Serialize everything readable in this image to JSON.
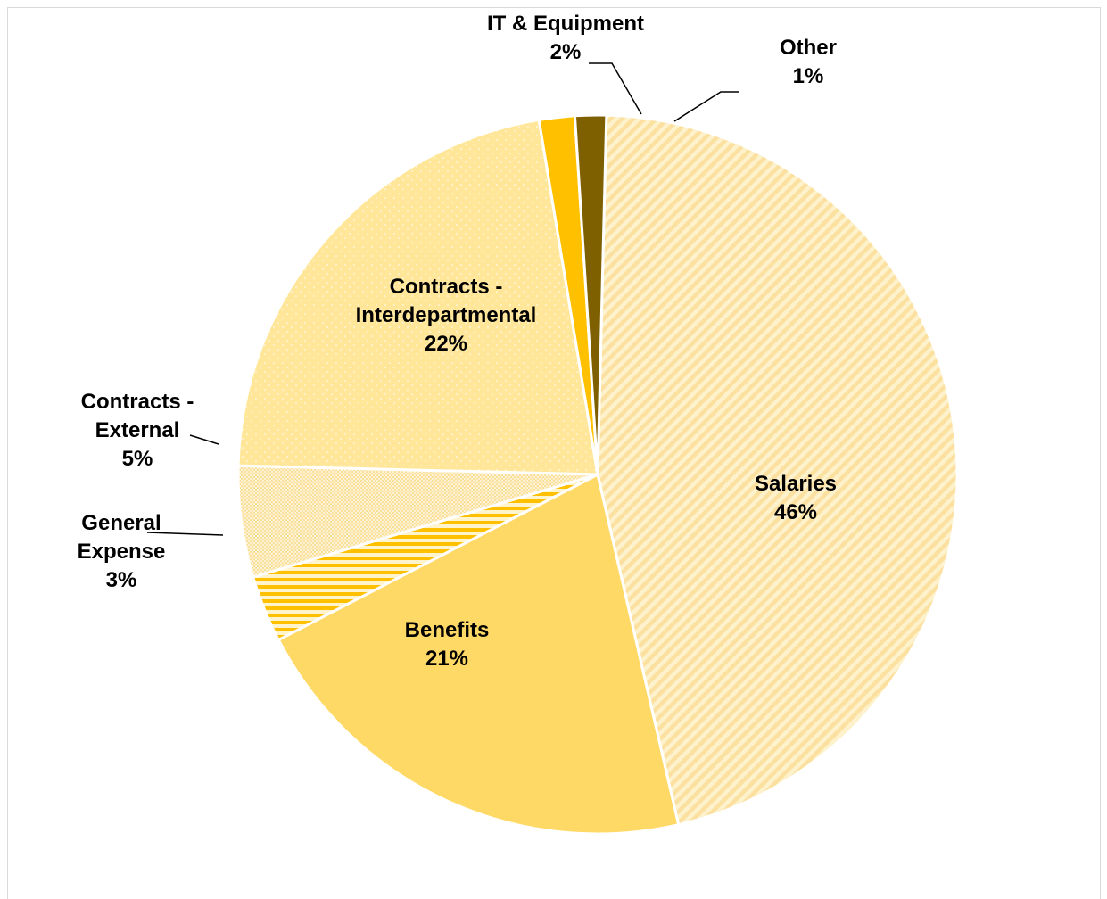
{
  "chart_data": {
    "type": "pie",
    "title": "",
    "legend": "none",
    "slices": [
      {
        "name": "Salaries",
        "line1": "Salaries",
        "line2": "",
        "pct_label": "46%",
        "value": 46,
        "fill": "hatch-diag",
        "color": "#fbe6a6"
      },
      {
        "name": "Benefits",
        "line1": "Benefits",
        "line2": "",
        "pct_label": "21%",
        "value": 21,
        "fill": "solid",
        "color": "#ffd966"
      },
      {
        "name": "General Expense",
        "line1": "General",
        "line2": "Expense",
        "pct_label": "3%",
        "value": 3,
        "fill": "hatch-horiz",
        "color": "#ffc000"
      },
      {
        "name": "Contracts - External",
        "line1": "Contracts -",
        "line2": "External",
        "pct_label": "5%",
        "value": 5,
        "fill": "dots-dense",
        "color": "#fbe2a0"
      },
      {
        "name": "Contracts - Interdepartmental",
        "line1": "Contracts -",
        "line2": "Interdepartmental",
        "pct_label": "22%",
        "value": 22,
        "fill": "dots-sparse",
        "color": "#ffe699"
      },
      {
        "name": "IT & Equipment",
        "line1": "IT & Equipment",
        "line2": "",
        "pct_label": "2%",
        "value": 1.6,
        "fill": "solid",
        "color": "#ffc000"
      },
      {
        "name": "Other",
        "line1": "Other",
        "line2": "",
        "pct_label": "1%",
        "value": 1.4,
        "fill": "solid",
        "color": "#7f6000"
      }
    ]
  }
}
